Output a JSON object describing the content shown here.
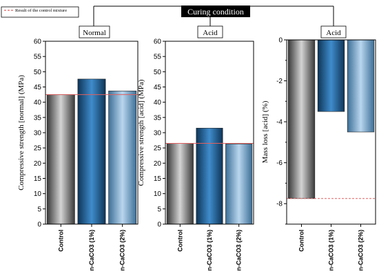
{
  "header": {
    "title": "Curing condition",
    "legend_label": "Result of the control mixture"
  },
  "colors": {
    "control_line": "#e06060",
    "bar_control": "#8a8a8a",
    "bar_nc1": "#2a6fa8",
    "bar_nc2": "#8fb8d8",
    "header_bg": "#000000"
  },
  "chart_data": [
    {
      "type": "bar",
      "panel_label": "Normal",
      "categories": [
        "Control",
        "n-CaCO3 (1%)",
        "n-CaCO3 (2%)"
      ],
      "values": [
        42.5,
        47.6,
        43.7
      ],
      "control_value": 42.5,
      "ylabel": "Compressive strength [normal] (MPa)",
      "ylim": [
        0,
        60
      ],
      "yticks": [
        0,
        5,
        10,
        15,
        20,
        25,
        30,
        35,
        40,
        45,
        50,
        55,
        60
      ]
    },
    {
      "type": "bar",
      "panel_label": "Acid",
      "categories": [
        "Control",
        "n-CaCO3 (1%)",
        "n-CaCO3 (2%)"
      ],
      "values": [
        26.5,
        31.5,
        26.3
      ],
      "control_value": 26.5,
      "ylabel": "Compressive strength [acid] (MPa)",
      "ylim": [
        0,
        60
      ],
      "yticks": [
        0,
        5,
        10,
        15,
        20,
        25,
        30,
        35,
        40,
        45,
        50,
        55,
        60
      ]
    },
    {
      "type": "bar",
      "panel_label": "Acid",
      "categories": [
        "Control",
        "n-CaCO3 (1%)",
        "n-CaCO3 (2%)"
      ],
      "values": [
        -7.75,
        -3.5,
        -4.5
      ],
      "control_value": -7.75,
      "ylabel": "Mass loss [acid] (%)",
      "ylim": [
        -9,
        0
      ],
      "yticks": [
        0,
        -2,
        -4,
        -6,
        -8
      ]
    }
  ]
}
